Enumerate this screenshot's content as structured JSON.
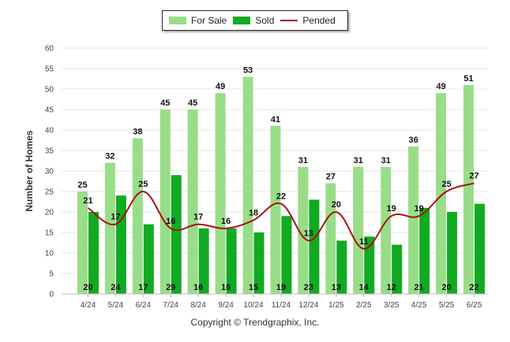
{
  "chart_data": {
    "type": "bar",
    "ylabel": "Number of Homes",
    "ylim": [
      0,
      60
    ],
    "yticks": [
      "0",
      "5",
      "10",
      "15",
      "20",
      "25",
      "30",
      "35",
      "40",
      "45",
      "50",
      "55",
      "60"
    ],
    "categories": [
      "4/24",
      "5/24",
      "6/24",
      "7/24",
      "8/24",
      "9/24",
      "10/24",
      "11/24",
      "12/24",
      "1/25",
      "2/25",
      "3/25",
      "4/25",
      "5/25",
      "6/25"
    ],
    "series": [
      {
        "name": "For Sale",
        "type": "bar",
        "color": "#99dd88",
        "values": [
          25,
          32,
          38,
          45,
          45,
          49,
          53,
          41,
          31,
          27,
          31,
          31,
          36,
          49,
          51
        ]
      },
      {
        "name": "Sold",
        "type": "bar",
        "color": "#11aa22",
        "values": [
          20,
          24,
          17,
          29,
          16,
          16,
          15,
          19,
          23,
          13,
          14,
          12,
          21,
          20,
          22
        ]
      },
      {
        "name": "Pended",
        "type": "line",
        "color": "#aa1111",
        "values": [
          21,
          17,
          25,
          16,
          17,
          16,
          18,
          22,
          13,
          20,
          11,
          19,
          19,
          25,
          27
        ]
      }
    ],
    "grid": true,
    "legend": "top-center"
  },
  "legend": {
    "for_sale": "For Sale",
    "sold": "Sold",
    "pended": "Pended"
  },
  "footer": {
    "copyright": "Copyright © Trendgraphix, Inc."
  }
}
